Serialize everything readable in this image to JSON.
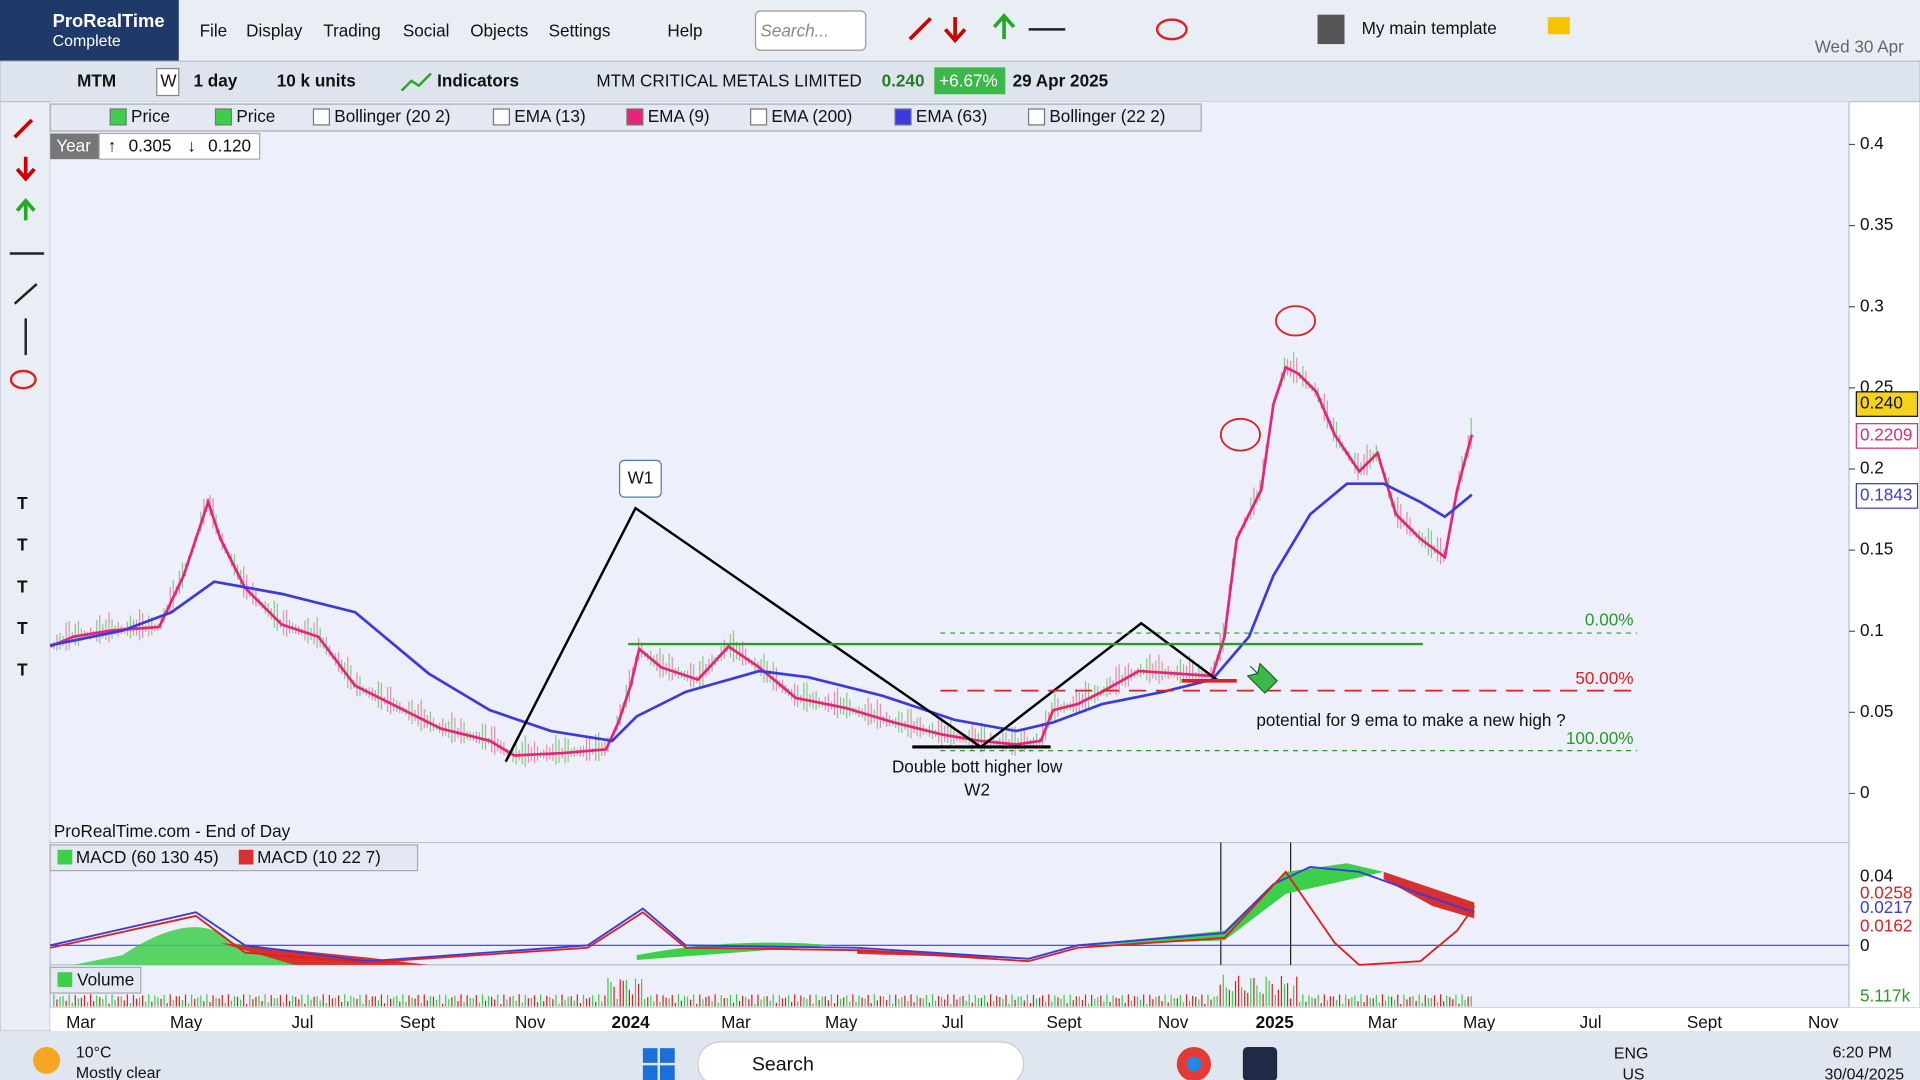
{
  "app": {
    "name": "ProRealTime",
    "edition": "Complete"
  },
  "menu": [
    "File",
    "Display",
    "Trading",
    "Social",
    "Objects",
    "Settings",
    "Help"
  ],
  "search_placeholder": "Search...",
  "template": "My main template",
  "date_top": "Wed 30 Apr",
  "toolbar": {
    "symbol": "MTM",
    "period_code": "W",
    "period": "1 day",
    "units": "10 k units",
    "indicators": "Indicators",
    "instrument": "MTM CRITICAL METALS LIMITED",
    "last": "0.240",
    "change": "+6.67%",
    "date": "29 Apr 2025"
  },
  "legend": [
    "Price",
    "Price",
    "Bollinger (20 2)",
    "EMA (13)",
    "EMA (9)",
    "EMA (200)",
    "EMA (63)",
    "Bollinger (22 2)"
  ],
  "range": {
    "label": "Year",
    "high": "0.305",
    "low": "0.120"
  },
  "price_axis": {
    "ticks": [
      0.4,
      0.35,
      0.3,
      0.25,
      0.2,
      0.15,
      0.1,
      0.05,
      0
    ],
    "last_labels": [
      "0.240",
      "0.2209",
      "0.1843"
    ]
  },
  "annotations": {
    "w1": "W1",
    "double_bottom": "Double bott higher low",
    "w2": "W2",
    "fib": [
      "0.00%",
      "50.00%",
      "100.00%"
    ],
    "note": "potential for 9 ema to make a new high ?"
  },
  "source": "ProRealTime.com - End of Day",
  "macd": {
    "legend": [
      "MACD (60 130 45)",
      "MACD (10 22 7)"
    ],
    "axis": [
      "0.04",
      "0.0258",
      "0.0217",
      "0.0162",
      "0"
    ]
  },
  "volume": {
    "legend": "Volume",
    "axis": "5.117k"
  },
  "time_axis": [
    "Mar",
    "May",
    "Jul",
    "Sept",
    "Nov",
    "2024",
    "Mar",
    "May",
    "Jul",
    "Sept",
    "Nov",
    "2025",
    "Mar",
    "May",
    "Jul",
    "Sept",
    "Nov"
  ],
  "taskbar": {
    "temp": "10°C",
    "weather": "Mostly clear",
    "search": "Search",
    "lang": "ENG",
    "region": "US",
    "time": "6:20 PM",
    "date": "30/04/2025"
  }
}
